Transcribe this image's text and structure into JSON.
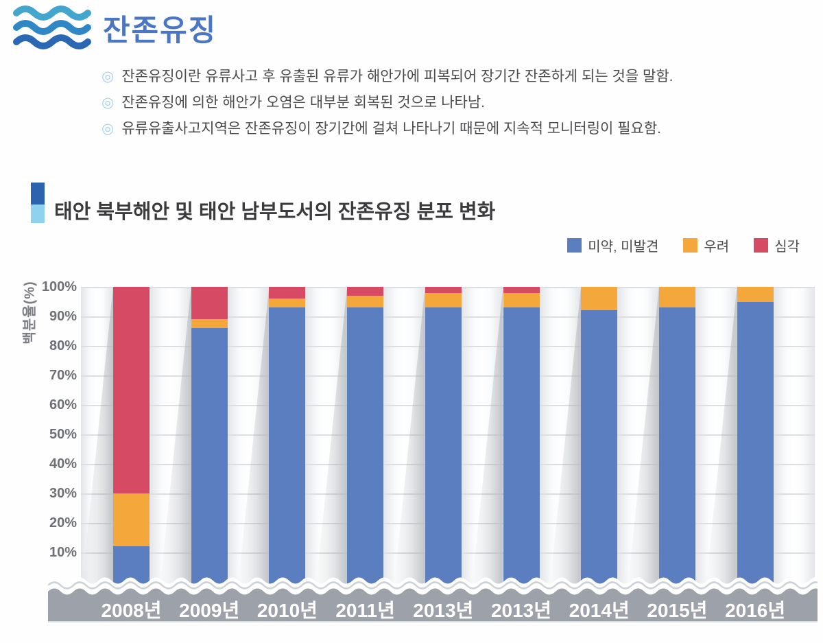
{
  "icons": {
    "logo": "waves-icon",
    "bullet_glyph": "◎"
  },
  "header": {
    "title": "잔존유징"
  },
  "bullets": [
    "잔존유징이란 유류사고 후 유출된 유류가 해안가에 피복되어 장기간 잔존하게 되는 것을 말함.",
    "잔존유징에 의한 해안가 오염은 대부분 회복된 것으로 나타남.",
    "유류유출사고지역은 잔존유징이 장기간에 걸쳐 나타나기 때문에 지속적 모니터링이 필요함."
  ],
  "chart_data": {
    "type": "bar",
    "stacked": true,
    "title": "태안 북부해안 및 태안 남부도서의 잔존유징 분포 변화",
    "ylabel": "백분율(%)",
    "categories": [
      "2008년",
      "2009년",
      "2010년",
      "2011년",
      "2013년",
      "2013년",
      "2014년",
      "2015년",
      "2016년"
    ],
    "series": [
      {
        "name": "미약, 미발견",
        "color": "#5b7ec1",
        "values": [
          12,
          86,
          93,
          93,
          93,
          93,
          92,
          93,
          95
        ]
      },
      {
        "name": "우려",
        "color": "#f4a73b",
        "values": [
          18,
          3,
          3,
          4,
          5,
          5,
          8,
          7,
          5
        ]
      },
      {
        "name": "심각",
        "color": "#d64a64",
        "values": [
          70,
          11,
          4,
          3,
          2,
          2,
          0,
          0,
          0
        ]
      }
    ],
    "ylim": [
      0,
      100
    ],
    "ytick_step": 10,
    "yticks": [
      "100%",
      "90%",
      "80%",
      "70%",
      "60%",
      "50%",
      "40%",
      "30%",
      "20%",
      "10%"
    ],
    "legend_position": "top-right",
    "grid": true,
    "colors": {
      "axis_band": "#9da1a9",
      "gridline": "#dcdee1"
    }
  }
}
